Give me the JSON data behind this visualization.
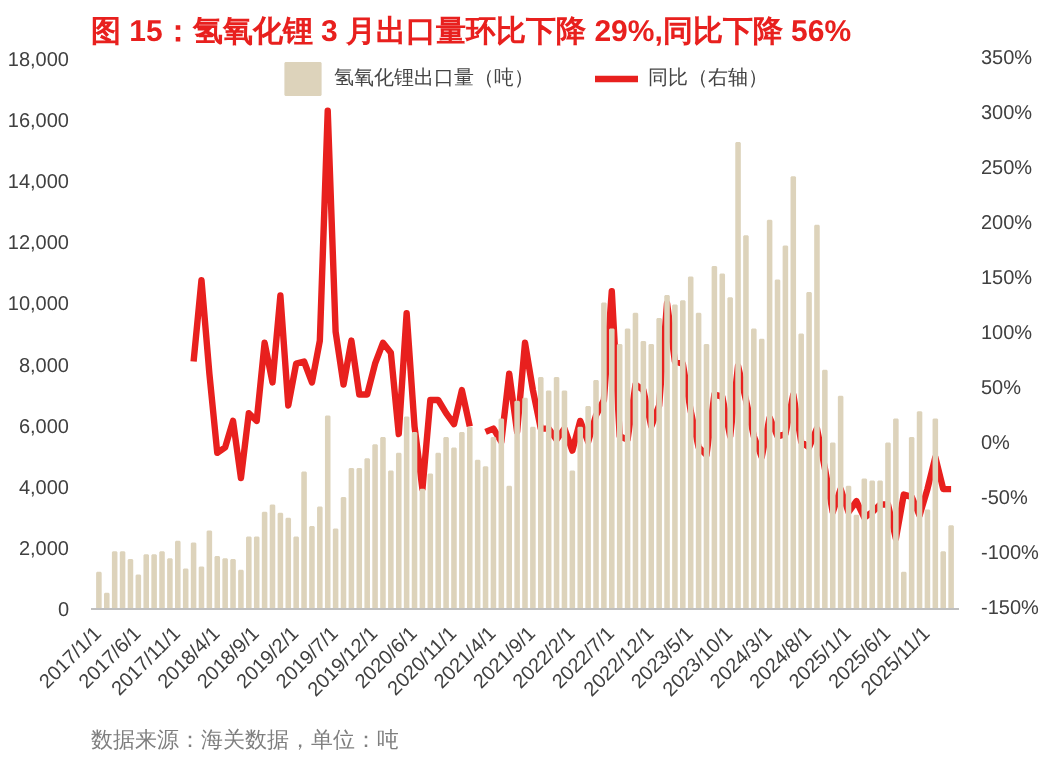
{
  "chart_data": {
    "type": "bar",
    "title": "图 15：氢氧化锂 3 月出口量环比下降 29%,同比下降 56%",
    "annotations": [
      "数据来源：海关数据，单位：吨"
    ],
    "categories": [
      "2017/1/1",
      null,
      null,
      null,
      null,
      "2017/6/1",
      null,
      null,
      null,
      null,
      "2017/11/1",
      null,
      null,
      null,
      null,
      "2018/4/1",
      null,
      null,
      null,
      null,
      "2018/9/1",
      null,
      null,
      null,
      null,
      "2019/2/1",
      null,
      null,
      null,
      null,
      "2019/7/1",
      null,
      null,
      null,
      null,
      "2019/12/1",
      null,
      null,
      null,
      null,
      "2020/6/1",
      null,
      null,
      null,
      null,
      "2020/11/1",
      null,
      null,
      null,
      null,
      "2021/4/1",
      null,
      null,
      null,
      null,
      "2021/9/1",
      null,
      null,
      null,
      null,
      "2022/2/1",
      null,
      null,
      null,
      null,
      "2022/7/1",
      null,
      null,
      null,
      null,
      "2022/12/1",
      null,
      null,
      null,
      null,
      "2023/5/1",
      null,
      null,
      null,
      null,
      "2023/10/1",
      null,
      null,
      null,
      null,
      "2024/3/1",
      null,
      null,
      null,
      null,
      "2024/8/1",
      null,
      null,
      null,
      null,
      "2025/1/1",
      null,
      null,
      null,
      null,
      "2025/6/1",
      null,
      null,
      null,
      null,
      "2025/11/1",
      null,
      null,
      null
    ],
    "series": [
      {
        "name": "氢氧化锂出口量（吨）",
        "color": "#ddd3bb",
        "values": [
          1190,
          500,
          1860,
          1860,
          1600,
          1100,
          1760,
          1760,
          1860,
          1630,
          2200,
          1290,
          2140,
          1360,
          2540,
          1700,
          1630,
          1600,
          1250,
          2340,
          2340,
          3150,
          3390,
          3120,
          2950,
          2340,
          4470,
          2680,
          3320,
          6300,
          2600,
          3630,
          4580,
          4580,
          4900,
          5360,
          5600,
          4500,
          5080,
          6270,
          5760,
          3900,
          4400,
          5080,
          5600,
          5250,
          5760,
          5930,
          4850,
          4640,
          5600,
          6200,
          4000,
          6780,
          6880,
          5930,
          7560,
          7120,
          7560,
          7120,
          4500,
          5930,
          6610,
          7460,
          10000,
          9150,
          8640,
          9150,
          9660,
          8740,
          8640,
          9490,
          10240,
          9930,
          10070,
          10850,
          9660,
          8640,
          11190,
          10950,
          10170,
          15250,
          12200,
          9150,
          8810,
          12710,
          10750,
          11860,
          14130,
          8980,
          10340,
          12540,
          7800,
          5420,
          6950,
          4000,
          3050,
          4240,
          4170,
          4170,
          5420,
          6200,
          1190,
          5600,
          6440,
          3220,
          6200,
          1860,
          2710
        ]
      },
      {
        "name": "同比（右轴）",
        "type": "line",
        "axis": "y2",
        "color": "#e8201e",
        "values": [
          null,
          null,
          null,
          null,
          null,
          null,
          null,
          null,
          null,
          null,
          null,
          null,
          75,
          149,
          64,
          -8,
          -3,
          21,
          -31,
          28,
          21,
          92,
          56,
          135,
          35,
          73,
          75,
          56,
          94,
          303,
          102,
          54,
          94,
          45,
          45,
          73,
          92,
          83,
          9,
          119,
          16,
          -41,
          40,
          40,
          28,
          18,
          49,
          16,
          null,
          11,
          14,
          2,
          64,
          11,
          92,
          49,
          14,
          14,
          4,
          14,
          -6,
          21,
          2,
          26,
          40,
          139,
          7,
          4,
          54,
          49,
          16,
          35,
          128,
          75,
          73,
          30,
          -3,
          -10,
          45,
          43,
          7,
          71,
          40,
          7,
          -12,
          24,
          7,
          9,
          45,
          2,
          -3,
          14,
          -22,
          -62,
          -41,
          -62,
          -52,
          -67,
          -62,
          -55,
          -55,
          -86,
          -46,
          -48,
          -65,
          -41,
          -12,
          -41,
          -41
        ]
      }
    ],
    "ylim": [
      0,
      18000
    ],
    "yticks": [
      0,
      {
        "value": 2000,
        "label": "2,000"
      },
      {
        "value": 4000,
        "label": "4,000"
      },
      {
        "value": 6000,
        "label": "6,000"
      },
      {
        "value": 8000,
        "label": "8,000"
      },
      {
        "value": 10000,
        "label": "10,000"
      },
      {
        "value": 12000,
        "label": "12,000"
      },
      {
        "value": 14000,
        "label": "14,000"
      },
      {
        "value": 16000,
        "label": "16,000"
      },
      {
        "value": 18000,
        "label": "18,000"
      }
    ],
    "y2lim": [
      -150,
      350
    ],
    "y2ticks": [
      {
        "value": -150,
        "label": "-150%"
      },
      {
        "value": -100,
        "label": "-100%"
      },
      {
        "value": -50,
        "label": "-50%"
      },
      {
        "value": 0,
        "label": "0%"
      },
      {
        "value": 50,
        "label": "50%"
      },
      {
        "value": 100,
        "label": "100%"
      },
      {
        "value": 150,
        "label": "150%"
      },
      {
        "value": 200,
        "label": "200%"
      },
      {
        "value": 250,
        "label": "250%"
      },
      {
        "value": 300,
        "label": "300%"
      },
      {
        "value": 350,
        "label": "350%"
      }
    ],
    "grid": false,
    "legend": "top"
  }
}
